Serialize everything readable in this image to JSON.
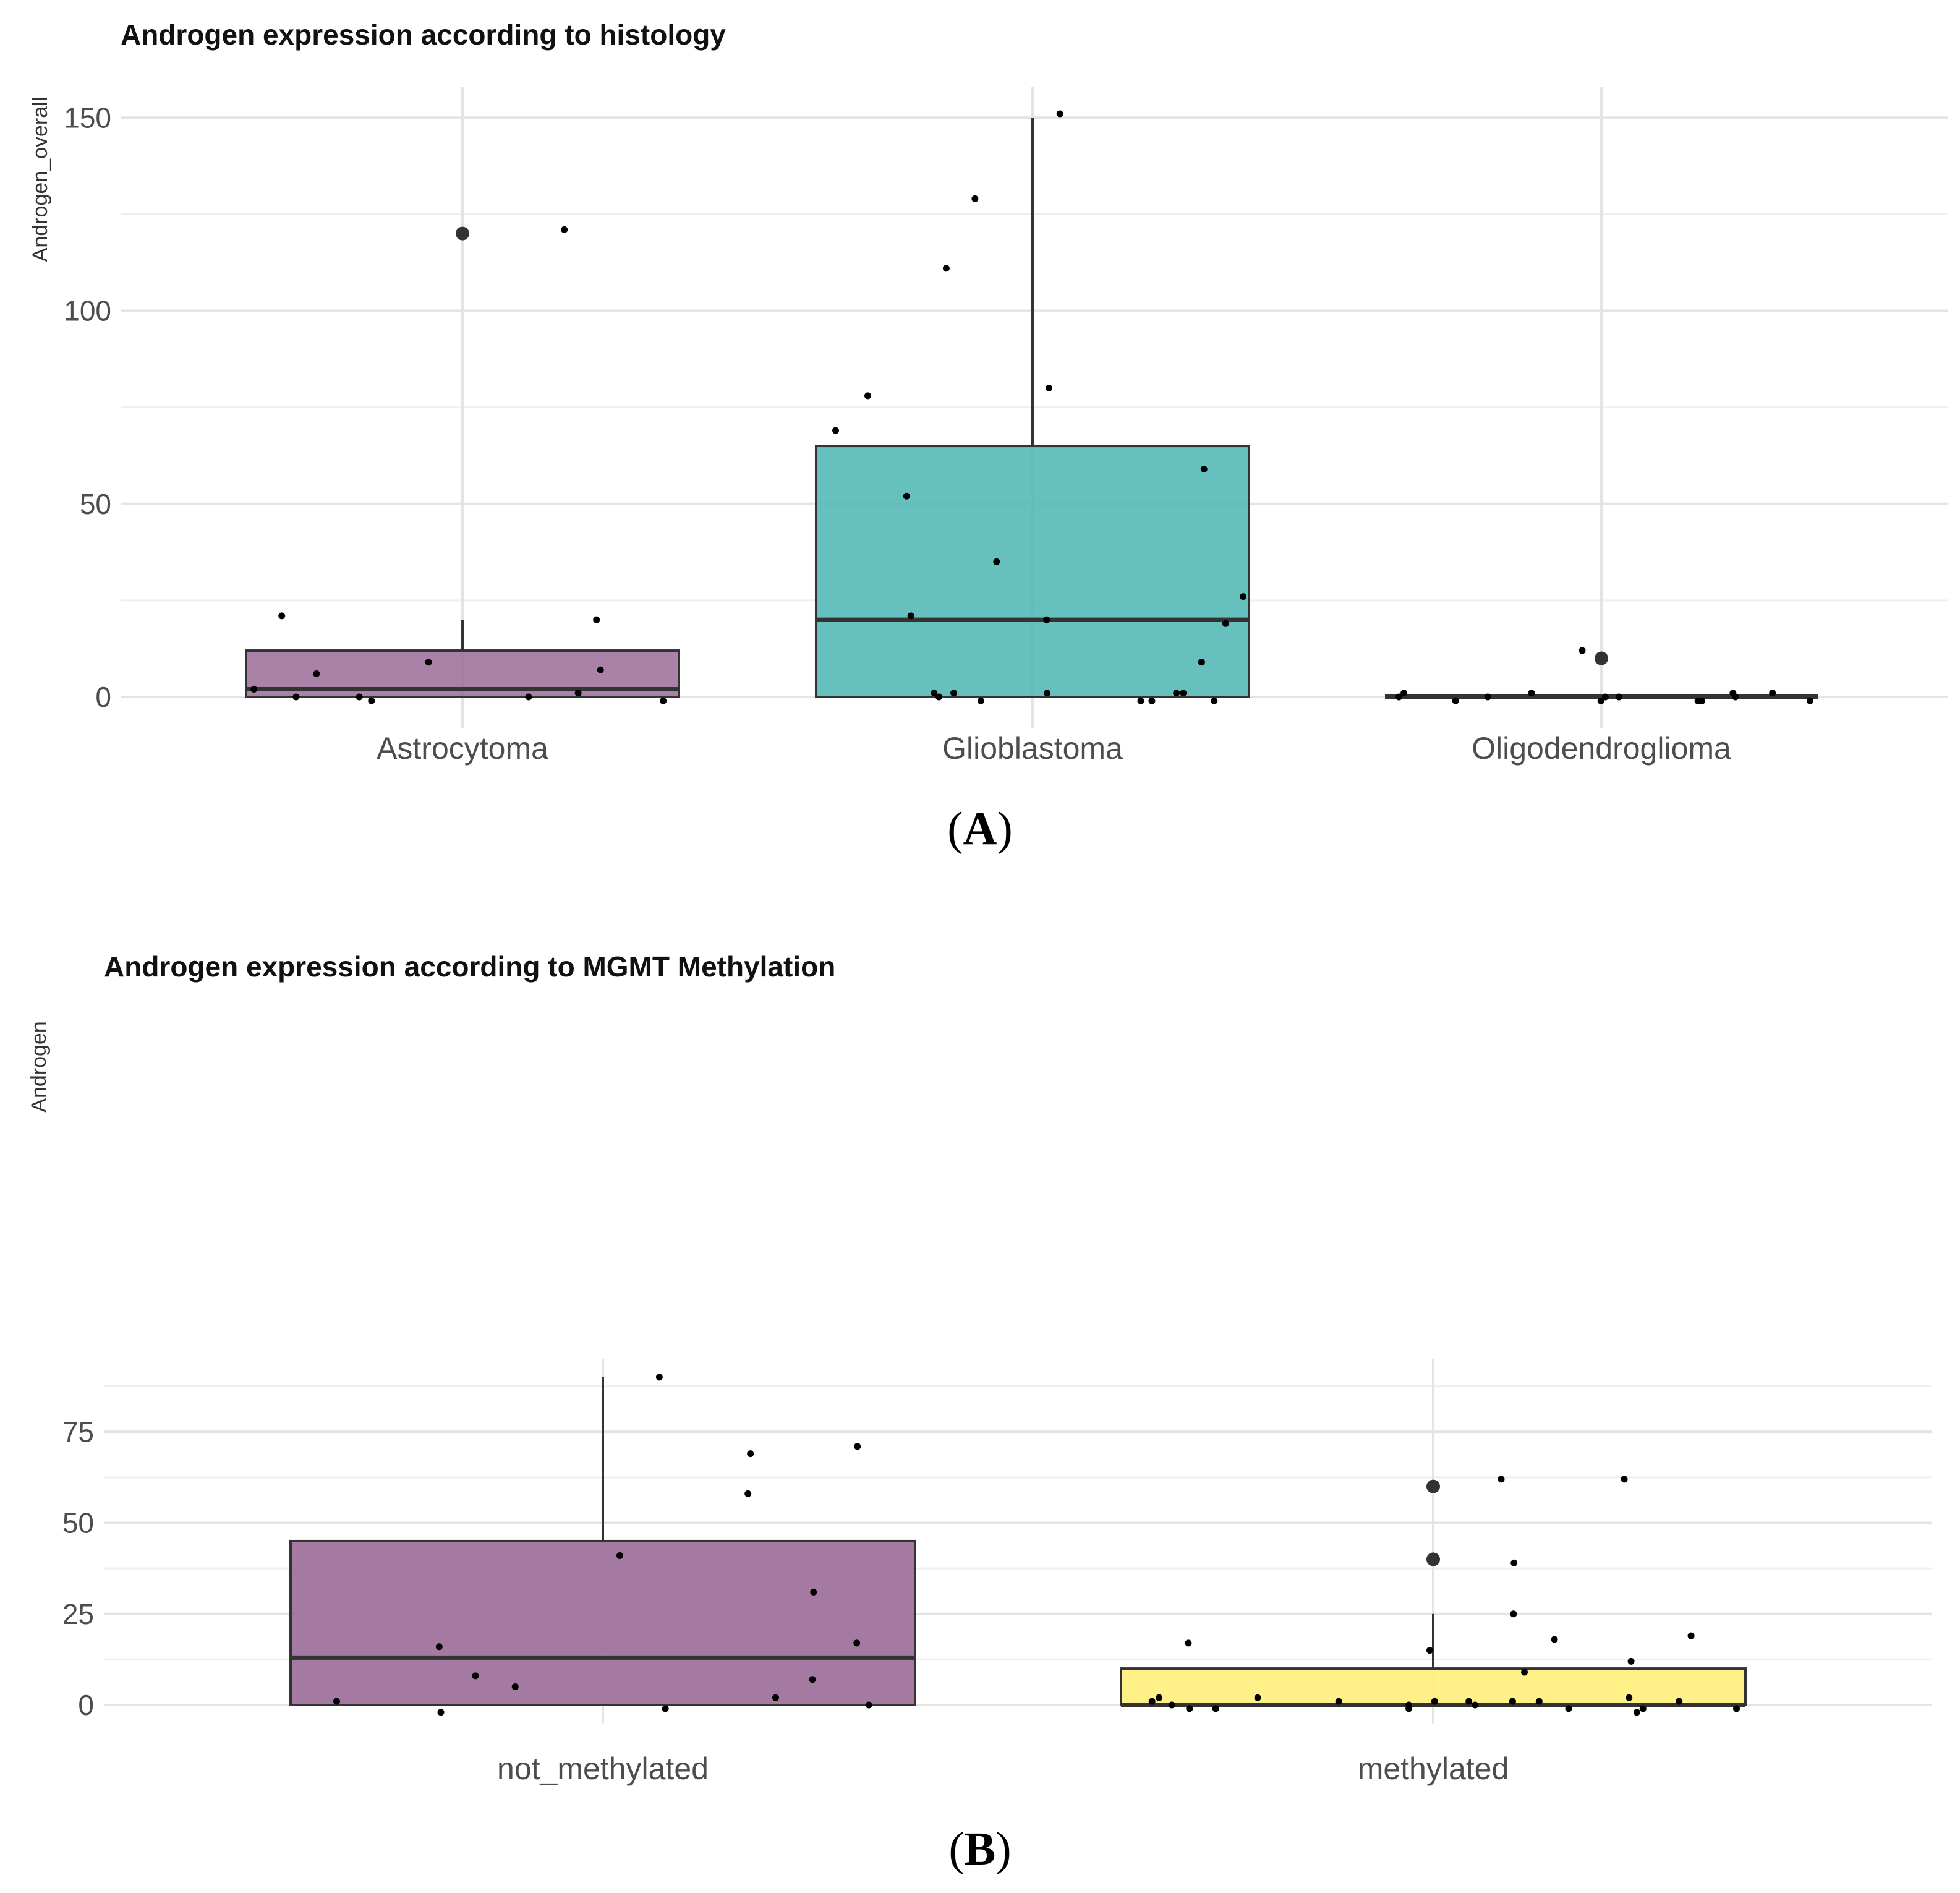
{
  "figure": {
    "panel_labels": [
      {
        "open": "(",
        "letter": "A",
        "close": ")"
      },
      {
        "open": "(",
        "letter": "B",
        "close": ")"
      }
    ]
  },
  "chart_data": [
    {
      "type": "box",
      "title": "Androgen expression according to histology",
      "xlabel": "",
      "ylabel": "Androgen_overall",
      "ylim": [
        -8,
        158
      ],
      "yticks": [
        0,
        50,
        100,
        150
      ],
      "grid": true,
      "categories": [
        "Astrocytoma",
        "Glioblastoma",
        "Oligodendroglioma"
      ],
      "colors": [
        "#9b6b98",
        "#4bb6b3",
        "#f6e85a"
      ],
      "boxes": [
        {
          "q1": 0,
          "median": 2,
          "q3": 12,
          "whisker_low": 0,
          "whisker_high": 20,
          "outliers": [
            120
          ]
        },
        {
          "q1": 0,
          "median": 20,
          "q3": 65,
          "whisker_low": 0,
          "whisker_high": 150,
          "outliers": []
        },
        {
          "q1": 0,
          "median": 0,
          "q3": 0,
          "whisker_low": 0,
          "whisker_high": 0,
          "outliers": [
            10
          ]
        }
      ],
      "points": [
        {
          "category": "Astrocytoma",
          "values": [
            121,
            21,
            9,
            7,
            6,
            20,
            0,
            -1,
            -1,
            1,
            2,
            0,
            0
          ]
        },
        {
          "category": "Glioblastoma",
          "values": [
            151,
            129,
            111,
            80,
            78,
            69,
            59,
            52,
            35,
            26,
            21,
            20,
            19,
            9,
            1,
            1,
            1,
            1,
            1,
            0,
            -1,
            -1,
            -1,
            -1
          ]
        },
        {
          "category": "Oligodendroglioma",
          "values": [
            12,
            1,
            1,
            1,
            1,
            0,
            0,
            0,
            0,
            0,
            -1,
            -1,
            -1,
            -1,
            -1
          ]
        }
      ]
    },
    {
      "type": "box",
      "title": "Androgen expression according to MGMT Methylation",
      "xlabel": "",
      "ylabel": "Androgen",
      "ylim": [
        -5,
        95
      ],
      "yticks": [
        0,
        25,
        50,
        75
      ],
      "grid": true,
      "categories": [
        "not_methylated",
        "methylated"
      ],
      "colors": [
        "#9b6b98",
        "#fff07a"
      ],
      "boxes": [
        {
          "q1": 0,
          "median": 13,
          "q3": 45,
          "whisker_low": 0,
          "whisker_high": 90,
          "outliers": []
        },
        {
          "q1": 0,
          "median": 0,
          "q3": 10,
          "whisker_low": 0,
          "whisker_high": 25,
          "outliers": [
            60,
            40
          ]
        }
      ],
      "points": [
        {
          "category": "not_methylated",
          "values": [
            90,
            71,
            69,
            58,
            41,
            31,
            17,
            16,
            8,
            7,
            5,
            2,
            1,
            0,
            -1,
            -2
          ]
        },
        {
          "category": "methylated",
          "values": [
            62,
            62,
            39,
            25,
            19,
            18,
            17,
            15,
            12,
            9,
            2,
            2,
            2,
            1,
            1,
            1,
            1,
            1,
            1,
            1,
            0,
            0,
            0,
            -1,
            -1,
            -1,
            -1,
            -1,
            -1,
            -2
          ]
        }
      ]
    }
  ]
}
